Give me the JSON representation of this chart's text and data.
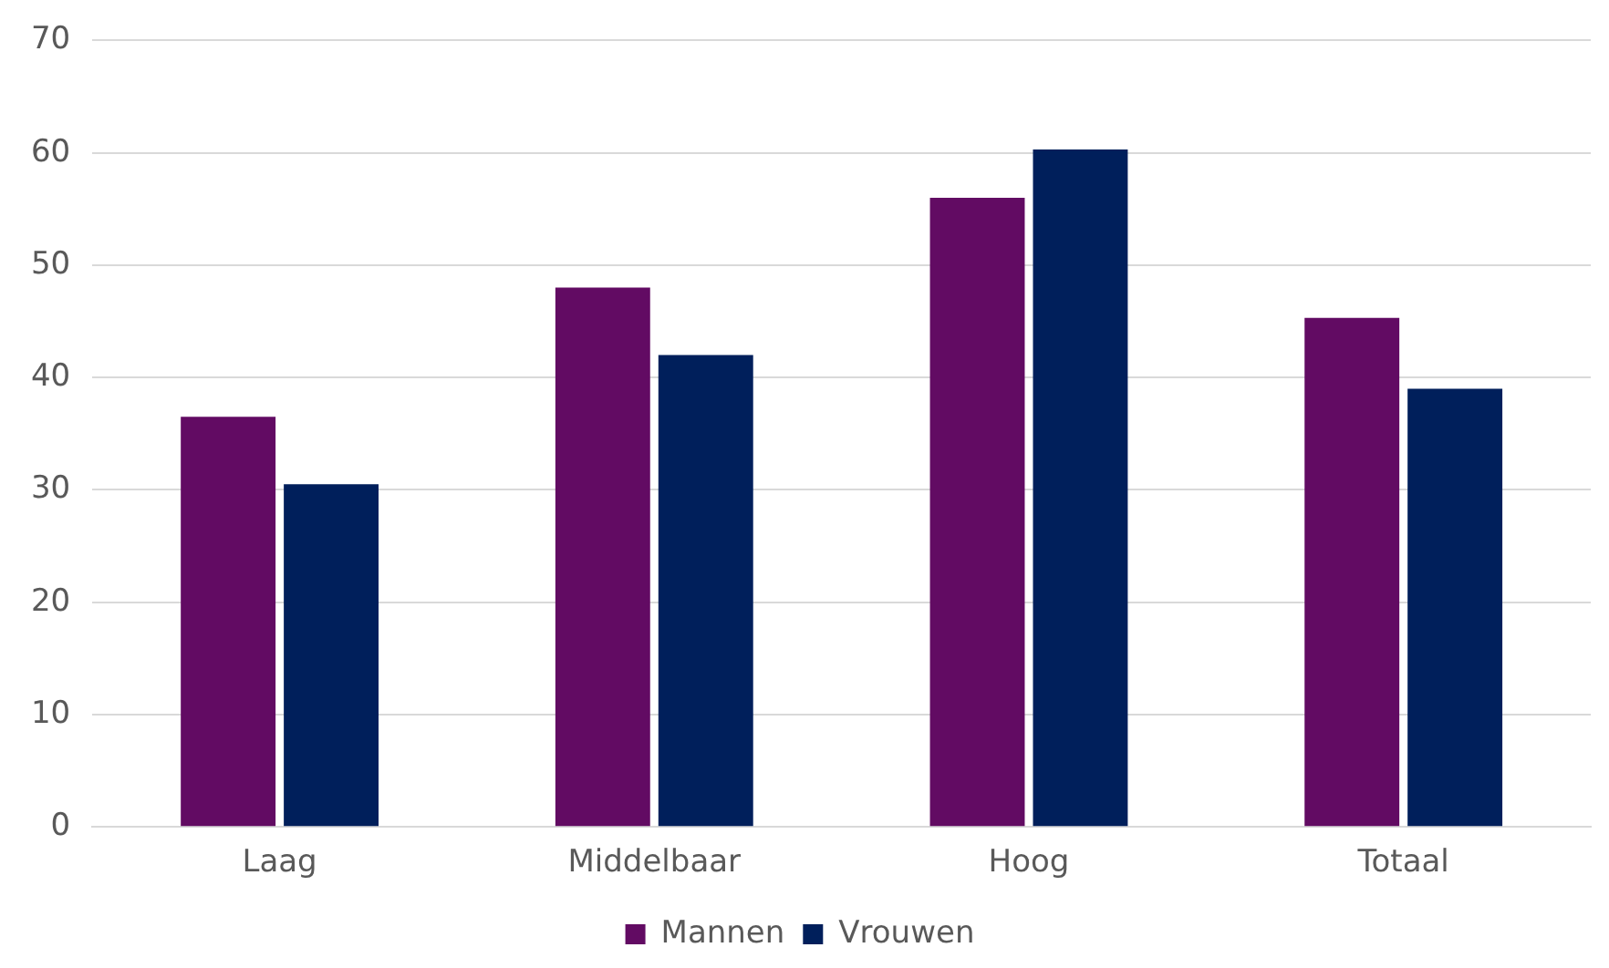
{
  "chart_data": {
    "type": "bar",
    "categories": [
      "Laag",
      "Middelbaar",
      "Hoog",
      "Totaal"
    ],
    "series": [
      {
        "name": "Mannen",
        "color": "#620b63",
        "values": [
          36.5,
          48,
          56,
          45.3
        ]
      },
      {
        "name": "Vrouwen",
        "color": "#001f5b",
        "values": [
          30.5,
          42,
          60.3,
          39
        ]
      }
    ],
    "ylim": [
      0,
      70
    ],
    "yticks": [
      0,
      10,
      20,
      30,
      40,
      50,
      60,
      70
    ],
    "grid": "y",
    "legend": "bottom"
  }
}
